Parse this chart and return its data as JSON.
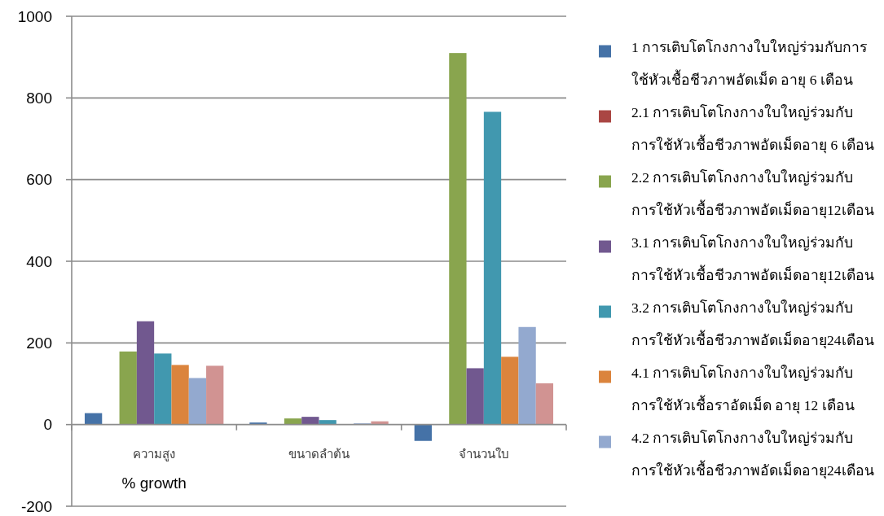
{
  "chart_data": {
    "type": "bar",
    "categories": [
      "ความสูง",
      "ขนาดลำต้น",
      "จำนวนใบ"
    ],
    "series": [
      {
        "name": "1 การเติบโตโกงกางใบใหญ่ร่วมกับการใช้หัวเชื้อชีวภาพอัดเม็ด อายุ 6 เดือน",
        "color": "#4572a7",
        "values": [
          28,
          5,
          -40
        ]
      },
      {
        "name": "2.1 การเติบโตโกงกางใบใหญ่ร่วมกับการใช้หัวเชื้อชีวภาพอัดเม็ดอายุ 6 เดือน",
        "color": "#aa4643",
        "values": [
          0,
          0,
          0
        ]
      },
      {
        "name": "2.2 การเติบโตโกงกางใบใหญ่ร่วมกับการใช้หัวเชื้อชีวภาพอัดเม็ดอายุ12เดือน",
        "color": "#89a54e",
        "values": [
          179,
          15,
          910
        ]
      },
      {
        "name": "3.1 การเติบโตโกงกางใบใหญ่ร่วมกับการใช้หัวเชื้อชีวภาพอัดเม็ดอายุ12เดือน",
        "color": "#71588f",
        "values": [
          253,
          19,
          138
        ]
      },
      {
        "name": "3.2 การเติบโตโกงกางใบใหญ่ร่วมกับการใช้หัวเชื้อชีวภาพอัดเม็ดอายุ24เดือน",
        "color": "#4198af",
        "values": [
          174,
          11,
          766
        ]
      },
      {
        "name": "4.1 การเติบโตโกงกางใบใหญ่ร่วมกับการใช้หัวเชื้อราอัดเม็ด อายุ 12 เดือน",
        "color": "#db843d",
        "values": [
          146,
          0,
          166
        ]
      },
      {
        "name": "4.2 การเติบโตโกงกางใบใหญ่ร่วมกับการใช้หัวเชื้อชีวภาพอัดเม็ดอายุ24เดือน",
        "color": "#93a9cf",
        "values": [
          114,
          3,
          239
        ]
      },
      {
        "color": "#d19392",
        "values": [
          144,
          8,
          101
        ]
      }
    ],
    "ylim": [
      -200,
      1000
    ],
    "yticks": [
      -200,
      0,
      200,
      400,
      600,
      800,
      1000
    ],
    "grid": "y",
    "legend": "right",
    "annotations": [
      "% growth"
    ]
  }
}
